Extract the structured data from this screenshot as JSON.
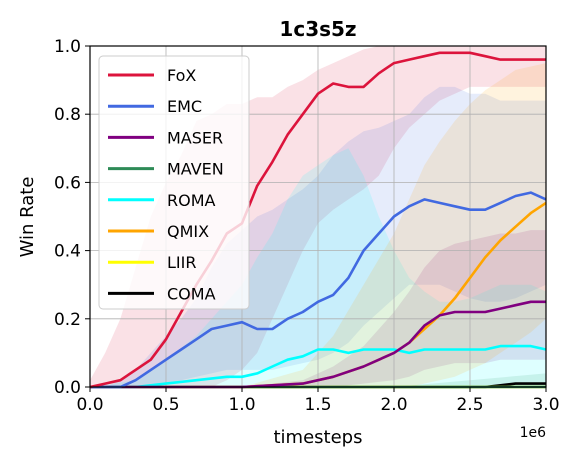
{
  "chart_data": {
    "type": "line",
    "title": "1c3s5z",
    "xlabel": "timesteps",
    "ylabel": "Win Rate",
    "x_exponent_label": "1e6",
    "xlim": [
      0,
      3.0
    ],
    "ylim": [
      0,
      1.0
    ],
    "grid": true,
    "legend_position": "top-left",
    "x_ticks": [
      {
        "value": 0.0,
        "label": "0.0"
      },
      {
        "value": 0.5,
        "label": "0.5"
      },
      {
        "value": 1.0,
        "label": "1.0"
      },
      {
        "value": 1.5,
        "label": "1.5"
      },
      {
        "value": 2.0,
        "label": "2.0"
      },
      {
        "value": 2.5,
        "label": "2.5"
      },
      {
        "value": 3.0,
        "label": "3.0"
      }
    ],
    "y_ticks": [
      {
        "value": 0.0,
        "label": "0.0"
      },
      {
        "value": 0.2,
        "label": "0.2"
      },
      {
        "value": 0.4,
        "label": "0.4"
      },
      {
        "value": 0.6,
        "label": "0.6"
      },
      {
        "value": 0.8,
        "label": "0.8"
      },
      {
        "value": 1.0,
        "label": "1.0"
      }
    ],
    "series": [
      {
        "name": "FoX",
        "color": "#dc143c",
        "x": [
          0,
          0.1,
          0.2,
          0.3,
          0.4,
          0.5,
          0.6,
          0.7,
          0.8,
          0.9,
          1.0,
          1.1,
          1.2,
          1.3,
          1.4,
          1.5,
          1.6,
          1.7,
          1.8,
          1.9,
          2.0,
          2.1,
          2.2,
          2.3,
          2.4,
          2.5,
          2.6,
          2.7,
          2.8,
          2.9,
          3.0
        ],
        "y": [
          0.0,
          0.01,
          0.02,
          0.05,
          0.08,
          0.14,
          0.22,
          0.3,
          0.37,
          0.45,
          0.48,
          0.59,
          0.66,
          0.74,
          0.8,
          0.86,
          0.89,
          0.88,
          0.88,
          0.92,
          0.95,
          0.96,
          0.97,
          0.98,
          0.98,
          0.98,
          0.97,
          0.96,
          0.96,
          0.96,
          0.96
        ],
        "upper": [
          0.02,
          0.1,
          0.2,
          0.35,
          0.5,
          0.6,
          0.68,
          0.78,
          0.8,
          0.83,
          0.83,
          0.85,
          0.85,
          0.88,
          0.9,
          0.93,
          0.95,
          0.97,
          0.99,
          1.0,
          1.0,
          1.0,
          1.0,
          1.0,
          1.0,
          1.0,
          1.0,
          1.0,
          1.0,
          1.0,
          1.0
        ],
        "lower": [
          0.0,
          0.0,
          0.0,
          0.0,
          0.0,
          0.0,
          0.0,
          0.0,
          0.0,
          0.02,
          0.05,
          0.1,
          0.2,
          0.3,
          0.4,
          0.48,
          0.52,
          0.55,
          0.58,
          0.62,
          0.7,
          0.76,
          0.8,
          0.84,
          0.86,
          0.88,
          0.88,
          0.88,
          0.88,
          0.88,
          0.88
        ]
      },
      {
        "name": "EMC",
        "color": "#4169e1",
        "x": [
          0,
          0.1,
          0.2,
          0.3,
          0.4,
          0.5,
          0.6,
          0.7,
          0.8,
          0.9,
          1.0,
          1.1,
          1.2,
          1.3,
          1.4,
          1.5,
          1.6,
          1.7,
          1.8,
          1.9,
          2.0,
          2.1,
          2.2,
          2.3,
          2.4,
          2.5,
          2.6,
          2.7,
          2.8,
          2.9,
          3.0
        ],
        "y": [
          0.0,
          0.0,
          0.0,
          0.02,
          0.05,
          0.08,
          0.11,
          0.14,
          0.17,
          0.18,
          0.19,
          0.17,
          0.17,
          0.2,
          0.22,
          0.25,
          0.27,
          0.32,
          0.4,
          0.45,
          0.5,
          0.53,
          0.55,
          0.54,
          0.53,
          0.52,
          0.52,
          0.54,
          0.56,
          0.57,
          0.55
        ],
        "upper": [
          0.0,
          0.0,
          0.02,
          0.05,
          0.1,
          0.15,
          0.2,
          0.26,
          0.35,
          0.42,
          0.46,
          0.5,
          0.52,
          0.55,
          0.58,
          0.62,
          0.68,
          0.72,
          0.75,
          0.76,
          0.78,
          0.8,
          0.85,
          0.88,
          0.88,
          0.86,
          0.86,
          0.84,
          0.84,
          0.84,
          0.84
        ],
        "lower": [
          0.0,
          0.0,
          0.0,
          0.0,
          0.0,
          0.01,
          0.02,
          0.03,
          0.04,
          0.05,
          0.05,
          0.05,
          0.05,
          0.06,
          0.07,
          0.08,
          0.1,
          0.13,
          0.18,
          0.22,
          0.26,
          0.3,
          0.3,
          0.3,
          0.28,
          0.26,
          0.25,
          0.25,
          0.26,
          0.28,
          0.3
        ]
      },
      {
        "name": "MASER",
        "color": "#800080",
        "x": [
          0,
          0.5,
          1.0,
          1.2,
          1.4,
          1.6,
          1.8,
          2.0,
          2.1,
          2.2,
          2.3,
          2.4,
          2.5,
          2.6,
          2.7,
          2.8,
          2.9,
          3.0
        ],
        "y": [
          0.0,
          0.0,
          0.0,
          0.005,
          0.01,
          0.03,
          0.06,
          0.1,
          0.13,
          0.18,
          0.21,
          0.22,
          0.22,
          0.22,
          0.23,
          0.24,
          0.25,
          0.25
        ],
        "upper": [
          0.0,
          0.0,
          0.0,
          0.01,
          0.02,
          0.06,
          0.12,
          0.22,
          0.28,
          0.35,
          0.4,
          0.42,
          0.43,
          0.44,
          0.45,
          0.45,
          0.46,
          0.46
        ],
        "lower": [
          0.0,
          0.0,
          0.0,
          0.0,
          0.0,
          0.0,
          0.01,
          0.02,
          0.03,
          0.05,
          0.06,
          0.07,
          0.07,
          0.07,
          0.08,
          0.08,
          0.08,
          0.08
        ]
      },
      {
        "name": "MAVEN",
        "color": "#2e8b57",
        "x": [
          0,
          1.0,
          1.5,
          2.0,
          2.5,
          3.0
        ],
        "y": [
          0.0,
          0.0,
          0.0,
          0.0,
          0.0,
          0.0
        ],
        "upper": [
          0.0,
          0.0,
          0.0,
          0.0,
          0.02,
          0.04
        ],
        "lower": [
          0.0,
          0.0,
          0.0,
          0.0,
          0.0,
          0.0
        ]
      },
      {
        "name": "ROMA",
        "color": "#00ffff",
        "x": [
          0,
          0.3,
          0.5,
          0.7,
          0.9,
          1.0,
          1.1,
          1.2,
          1.3,
          1.4,
          1.5,
          1.6,
          1.7,
          1.8,
          1.9,
          2.0,
          2.1,
          2.2,
          2.3,
          2.4,
          2.5,
          2.6,
          2.7,
          2.8,
          2.9,
          3.0
        ],
        "y": [
          0.0,
          0.0,
          0.01,
          0.02,
          0.03,
          0.03,
          0.04,
          0.06,
          0.08,
          0.09,
          0.11,
          0.11,
          0.1,
          0.11,
          0.11,
          0.11,
          0.1,
          0.11,
          0.11,
          0.11,
          0.11,
          0.11,
          0.12,
          0.12,
          0.12,
          0.11
        ],
        "upper": [
          0.0,
          0.02,
          0.08,
          0.15,
          0.25,
          0.3,
          0.38,
          0.45,
          0.55,
          0.62,
          0.65,
          0.68,
          0.7,
          0.62,
          0.5,
          0.4,
          0.32,
          0.28,
          0.25,
          0.25,
          0.26,
          0.28,
          0.3,
          0.3,
          0.3,
          0.28
        ],
        "lower": [
          0.0,
          0.0,
          0.0,
          0.0,
          0.0,
          0.0,
          0.0,
          0.0,
          0.0,
          0.0,
          0.0,
          0.0,
          0.0,
          0.0,
          0.0,
          0.0,
          0.0,
          0.0,
          0.0,
          0.0,
          0.0,
          0.0,
          0.0,
          0.0,
          0.0,
          0.0
        ]
      },
      {
        "name": "QMIX",
        "color": "#ffa500",
        "x": [
          0,
          1.0,
          1.4,
          1.6,
          1.8,
          2.0,
          2.1,
          2.2,
          2.3,
          2.4,
          2.5,
          2.6,
          2.7,
          2.8,
          2.9,
          3.0
        ],
        "y": [
          0.0,
          0.0,
          0.01,
          0.03,
          0.06,
          0.1,
          0.13,
          0.17,
          0.21,
          0.26,
          0.32,
          0.38,
          0.43,
          0.47,
          0.51,
          0.54
        ],
        "upper": [
          0.0,
          0.0,
          0.05,
          0.15,
          0.3,
          0.45,
          0.55,
          0.65,
          0.72,
          0.78,
          0.83,
          0.87,
          0.9,
          0.93,
          0.94,
          0.95
        ],
        "lower": [
          0.0,
          0.0,
          0.0,
          0.0,
          0.0,
          0.0,
          0.0,
          0.01,
          0.02,
          0.03,
          0.05,
          0.07,
          0.1,
          0.13,
          0.16,
          0.2
        ]
      },
      {
        "name": "LIIR",
        "color": "#ffff00",
        "x": [
          0,
          1.0,
          2.0,
          3.0
        ],
        "y": [
          0.0,
          0.0,
          0.0,
          0.0
        ],
        "upper": [
          0.0,
          0.0,
          0.0,
          0.0
        ],
        "lower": [
          0.0,
          0.0,
          0.0,
          0.0
        ]
      },
      {
        "name": "COMA",
        "color": "#000000",
        "x": [
          0,
          1.0,
          2.0,
          2.5,
          2.6,
          2.7,
          2.8,
          2.9,
          3.0
        ],
        "y": [
          0.0,
          0.0,
          0.0,
          0.0,
          0.0,
          0.005,
          0.01,
          0.01,
          0.01
        ],
        "upper": [
          0.0,
          0.0,
          0.0,
          0.0,
          0.0,
          0.0,
          0.0,
          0.0,
          0.0
        ],
        "lower": [
          0.0,
          0.0,
          0.0,
          0.0,
          0.0,
          0.0,
          0.0,
          0.0,
          0.0
        ]
      }
    ]
  }
}
